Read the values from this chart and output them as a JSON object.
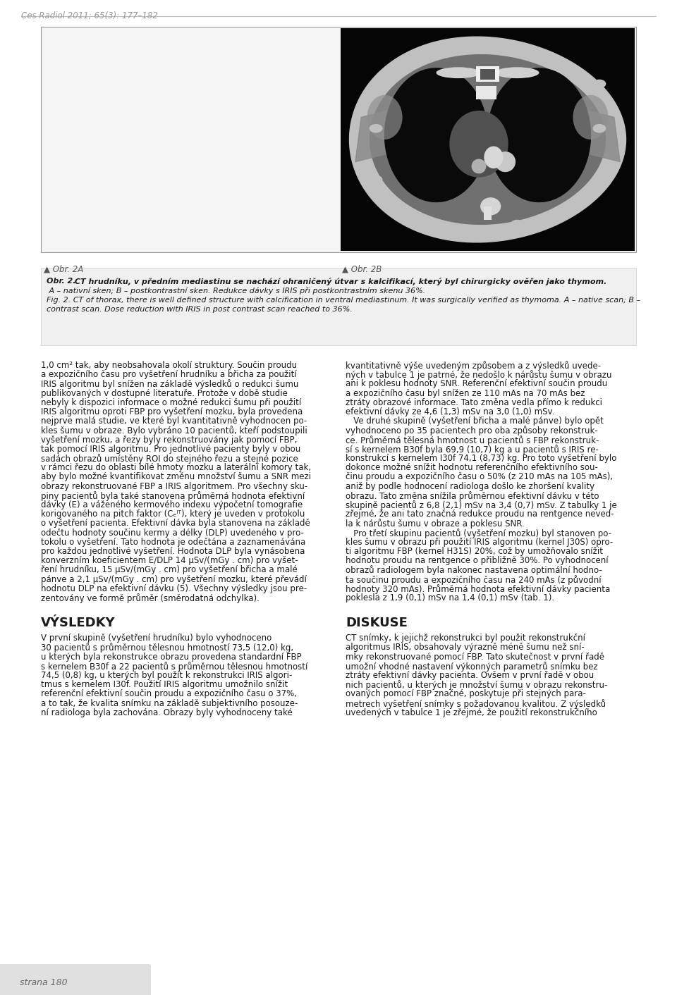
{
  "header_text": "Ces Radiol 2011; 65(3): 177–182",
  "fig_label_A": "▲ Obr. 2A",
  "fig_label_B": "▲ Obr. 2B",
  "caption_czech_bold_prefix": "Obr. 2.",
  "caption_czech_bold_body": " CT hrudníku, v předním mediastinu se nachází ohraničený útvar s kalcifikací, který byl chirurgicky ověřen jako thymom.",
  "caption_czech_normal": " A – nativní sken; B – postkontrastní sken. Redukce dávky s IRIS při postkontrastním skenu 36%.",
  "caption_english_line1": "Fig. 2. CT of thorax, there is well defined structure with calcification in ventral mediastinum. It was surgically verified as thymoma. A – native scan; B –",
  "caption_english_line2": "contrast scan. Dose reduction with IRIS in post contrast scan reached to 36%.",
  "body_left": [
    "1,0 cm² tak, aby neobsahovala okolí struktury. Součin proudu",
    "a expozičního času pro vyšetření hrudníku a břicha za použití",
    "IRIS algoritmu byl snížen na základě výsledků o redukci šumu",
    "publikovaných v dostupné literatuře. Protože v době studie",
    "nebyly k dispozici informace o možné redukci šumu při použití",
    "IRIS algoritmu oproti FBP pro vyšetření mozku, byla provedena",
    "nejprve malá studie, ve které byl kvantitativně vyhodnocen po-",
    "kles šumu v obraze. Bylo vybráno 10 pacientů, kteří podstoupili",
    "vyšetření mozku, a řezy byly rekonstruovány jak pomocí FBP,",
    "tak pomocí IRIS algoritmu. Pro jednotlivé pacienty byly v obou",
    "sadách obrazů umístěny ROI do stejného řezu a stejné pozice",
    "v rámci řezu do oblasti bílé hmoty mozku a laterální komory tak,",
    "aby bylo možné kvantifikovat změnu množství šumu a SNR mezi",
    "obrazy rekonstruované FBP a IRIS algoritmem. Pro všechny sku-",
    "piny pacientů byla také stanovena průměrná hodnota efektivní",
    "dávky (E) a váženého kermového indexu výpočetní tomografie",
    "korigovaného na pitch faktor (Cₑᴵᵀ), který je uveden v protokolu",
    "o vyšetření pacienta. Efektivní dávka byla stanovena na základě",
    "odečtu hodnoty součinu kermy a délky (DLP) uvedeného v pro-",
    "tokolu o vyšetření. Tato hodnota je odečtána a zaznamenávána",
    "pro každou jednotlivé vyšetření. Hodnota DLP byla vynásobena",
    "konverzním koeficientem E/DLP 14 μSv/(mGy . cm) pro vyšet-",
    "ření hrudníku, 15 μSv/(mGy . cm) pro vyšetření břicha a malé",
    "pánve a 2,1 μSv/(mGy . cm) pro vyšetření mozku, které převádí",
    "hodnotu DLP na efektivní dávku (5). Všechny výsledky jsou pre-",
    "zentovány ve formě průměr (směrodatná odchylka)."
  ],
  "body_right": [
    "kvantitativně výše uvedeným způsobem a z výsledků uvede-",
    "ných v tabulce 1 je patrné, že nedošlo k nárůstu šumu v obrazu",
    "ani k poklesu hodnoty SNR. Referenční efektivní součin proudu",
    "a expozičního času byl snížen ze 110 mAs na 70 mAs bez",
    "ztráty obrazové informace. Tato změna vedla přímo k redukci",
    "efektivní dávky ze 4,6 (1,3) mSv na 3,0 (1,0) mSv.",
    "   Ve druhé skupině (vyšetření břicha a malé pánve) bylo opět",
    "vyhodnoceno po 35 pacientech pro oba způsoby rekonstruk-",
    "ce. Průměrná tělesná hmotnost u pacientů s FBP rekonstruk-",
    "sí s kernelem B30f byla 69,9 (10,7) kg a u pacientů s IRIS re-",
    "konstrukcí s kernelem I30f 74,1 (8,73) kg. Pro toto vyšetření bylo",
    "dokonce možné snížit hodnotu referenčního efektivního sou-",
    "činu proudu a expozičního času o 50% (z 210 mAs na 105 mAs),",
    "aniž by podle hodnocení radiologa došlo ke zhoršení kvality",
    "obrazu. Tato změna snížila průměrnou efektivní dávku v této",
    "skupině pacientů z 6,8 (2,1) mSv na 3,4 (0,7) mSv. Z tabulky 1 je",
    "zřejmé, že ani tato značná redukce proudu na rentgence neved-",
    "la k nárůstu šumu v obraze a poklesu SNR.",
    "   Pro třetí skupinu pacientů (vyšetření mozku) byl stanoven po-",
    "kles šumu v obrazu při použití IRIS algoritmu (kernel J30S) opro-",
    "ti algoritmu FBP (kernel H31S) 20%, což by umožňovalo snížit",
    "hodnotu proudu na rentgence o přibližně 30%. Po vyhodnocení",
    "obrazů radiologem byla nakonec nastavena optimální hodno-",
    "ta součinu proudu a expozičního času na 240 mAs (z původní",
    "hodnoty 320 mAs). Průměrná hodnota efektivní dávky pacienta",
    "poklesla z 1,9 (0,1) mSv na 1,4 (0,1) mSv (tab. 1)."
  ],
  "section_left_title": "VÝSLEDKY",
  "section_right_title": "DISKUSE",
  "vysledky_lines": [
    "V první skupině (vyšetření hrudníku) bylo vyhodnoceno",
    "30 pacientů s průměrnou tělesnou hmotností 73,5 (12,0) kg,",
    "u kterých byla rekonstrukce obrazu provedena standardní FBP",
    "s kernelem B30f a 22 pacientů s průměrnou tělesnou hmotností",
    "74,5 (0,8) kg, u kterých byl použít k rekonstrukci IRIS algori-",
    "tmus s kernelem I30f. Použití IRIS algoritmu umožnilo snížit",
    "referenční efektivní součin proudu a expozičního času o 37%,",
    "a to tak, že kvalita snímku na základě subjektivního posouze-",
    "ní radiologa byla zachována. Obrazy byly vyhodnoceny také"
  ],
  "diskuse_lines": [
    "CT snímky, k jejichž rekonstrukci byl použit rekonstrukční",
    "algoritmus IRIS, obsahovaly výrazně méně šumu než sní-",
    "mky rekonstruované pomocí FBP. Tato skutečnost v první řadě",
    "umožní vhodné nastavení výkonných parametrů snímku bez",
    "ztráty efektivní dávky pacienta. Ovšem v první řadě v obou",
    "nich pacientů, u kterých je množství šumu v obrazu rekonstru-",
    "ovaných pomocí FBP značné, poskytuje při stejných para-",
    "metrech vyšetření snímky s požadovanou kvalitou. Z výsledků",
    "uvedených v tabulce 1 je zřejmé, že použití rekonstrukčního"
  ],
  "footer_text": "strana 180"
}
